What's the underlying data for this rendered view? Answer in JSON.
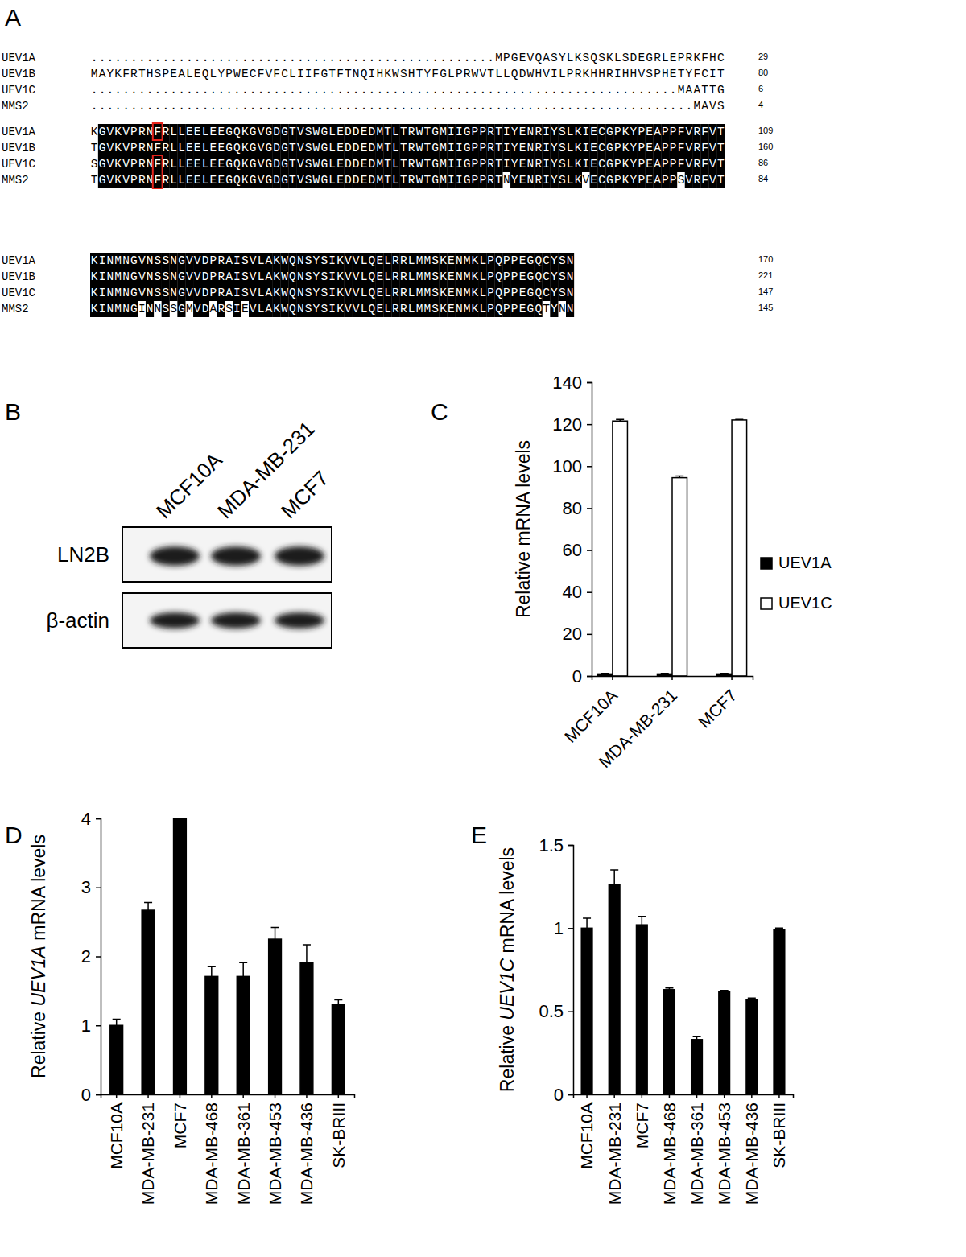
{
  "panel_labels": [
    "A",
    "B",
    "C",
    "D",
    "E"
  ],
  "alignment": {
    "blocks": [
      {
        "rows": [
          {
            "name": "UEV1A",
            "sequence": "...................................................MPGEVQASYLKSQSKLSDEGRLEPRKFHC",
            "end": 29
          },
          {
            "name": "UEV1B",
            "sequence": "MAYKFRTHSPEALEQLYPWECFVFCLIIFGTFTNQIHKWSHTYFGLPRWVTLLQDWHVILPRKHHRIHHVSPHETYFCIT",
            "end": 80
          },
          {
            "name": "UEV1C",
            "sequence": "..........................................................................MAATTG",
            "end": 6
          },
          {
            "name": "MMS2",
            "sequence": "............................................................................MAVS",
            "end": 4
          }
        ]
      },
      {
        "rows": [
          {
            "name": "UEV1A",
            "sequence": "KGVKVPRNFRLLEELEEGQKGVGDGTVSWGLEDDEDMTLTRWTGMIIGPPRTIYENRIYSLKIECGPKYPEAPPFVRFVT",
            "end": 109
          },
          {
            "name": "UEV1B",
            "sequence": "TGVKVPRNFRLLEELEEGQKGVGDGTVSWGLEDDEDMTLTRWTGMIIGPPRTIYENRIYSLKIECGPKYPEAPPFVRFVT",
            "end": 160
          },
          {
            "name": "UEV1C",
            "sequence": "SGVKVPRNFRLLEELEEGQKGVGDGTVSWGLEDDEDMTLTRWTGMIIGPPRTIYENRIYSLKIECGPKYPEAPPFVRFVT",
            "end": 86
          },
          {
            "name": "MMS2",
            "sequence": "TGVKVPRNFRLLEELEEGQKGVGDGTVSWGLEDDEDMTLTRWTGMIIGPPRTNYENRIYSLKVECGPKYPEAPPSVRFVT",
            "end": 84
          }
        ]
      },
      {
        "rows": [
          {
            "name": "UEV1A",
            "sequence": "KINMNGVNSSNGVVDPRAISVLAKWQNSYSIKVVLQELRRLMMSKENMKLPQPPEGQCYSN",
            "end": 170
          },
          {
            "name": "UEV1B",
            "sequence": "KINMNGVNSSNGVVDPRAISVLAKWQNSYSIKVVLQELRRLMMSKENMKLPQPPEGQCYSN",
            "end": 221
          },
          {
            "name": "UEV1C",
            "sequence": "KINMNGVNSSNGVVDPRAISVLAKWQNSYSIKVVLQELRRLMMSKENMKLPQPPEGQCYSN",
            "end": 147
          },
          {
            "name": "MMS2",
            "sequence": "KINMNGINNSSGMVDARSIEVLAKWQNSYSIKVVLQELRRLMMSKENMKLPQPPEGQTYNN",
            "end": 145
          }
        ]
      }
    ],
    "highlights": [
      {
        "block": 1,
        "column": 8,
        "rows": [
          0
        ]
      },
      {
        "block": 1,
        "column": 8,
        "rows": [
          2,
          3
        ]
      }
    ]
  },
  "blot": {
    "lanes": [
      "MCF10A",
      "MDA-MB-231",
      "MCF7"
    ],
    "rows": [
      "LN2B",
      "β-actin"
    ]
  },
  "chart_data": [
    {
      "type": "bar",
      "categories": [
        "MCF10A",
        "MDA-MB-231",
        "MCF7"
      ],
      "y_label": "Relative mRNA levels",
      "series": [
        {
          "name": "UEV1A",
          "color": "#000000",
          "values": [
            1,
            1,
            1
          ],
          "error": [
            0.2,
            0.2,
            0.2
          ]
        },
        {
          "name": "UEV1C",
          "color": "#ffffff",
          "values": [
            121.5,
            94.5,
            122
          ],
          "error": [
            0.8,
            0.8,
            0.3
          ]
        }
      ],
      "ylim": [
        0,
        140
      ],
      "yticks": [
        0,
        20,
        40,
        60,
        80,
        100,
        120,
        140
      ],
      "grid": false,
      "legend": "right"
    },
    {
      "type": "bar",
      "categories": [
        "MCF10A",
        "MDA-MB-231",
        "MCF7",
        "MDA-MB-468",
        "MDA-MB-361",
        "MDA-MB-453",
        "MDA-MB-436",
        "SK-BRIII"
      ],
      "y_label": "Relative UEV1A mRNA levels",
      "values": [
        1.0,
        2.67,
        4.0,
        1.71,
        1.71,
        2.25,
        1.91,
        1.3
      ],
      "error": [
        0.09,
        0.11,
        0.01,
        0.14,
        0.2,
        0.17,
        0.26,
        0.07
      ],
      "color": "#000000",
      "ylim": [
        0,
        4
      ],
      "yticks": [
        0,
        1,
        2,
        3,
        4
      ],
      "grid": false
    },
    {
      "type": "bar",
      "categories": [
        "MCF10A",
        "MDA-MB-231",
        "MCF7",
        "MDA-MB-468",
        "MDA-MB-361",
        "MDA-MB-453",
        "MDA-MB-436",
        "SK-BRIII"
      ],
      "y_label": "Relative UEV1C mRNA levels",
      "values": [
        1.0,
        1.26,
        1.02,
        0.63,
        0.33,
        0.62,
        0.57,
        0.99
      ],
      "error": [
        0.06,
        0.09,
        0.05,
        0.01,
        0.02,
        0.005,
        0.01,
        0.01
      ],
      "color": "#000000",
      "ylim": [
        0,
        1.5
      ],
      "yticks": [
        0,
        0.5,
        1,
        1.5
      ],
      "grid": false
    }
  ]
}
